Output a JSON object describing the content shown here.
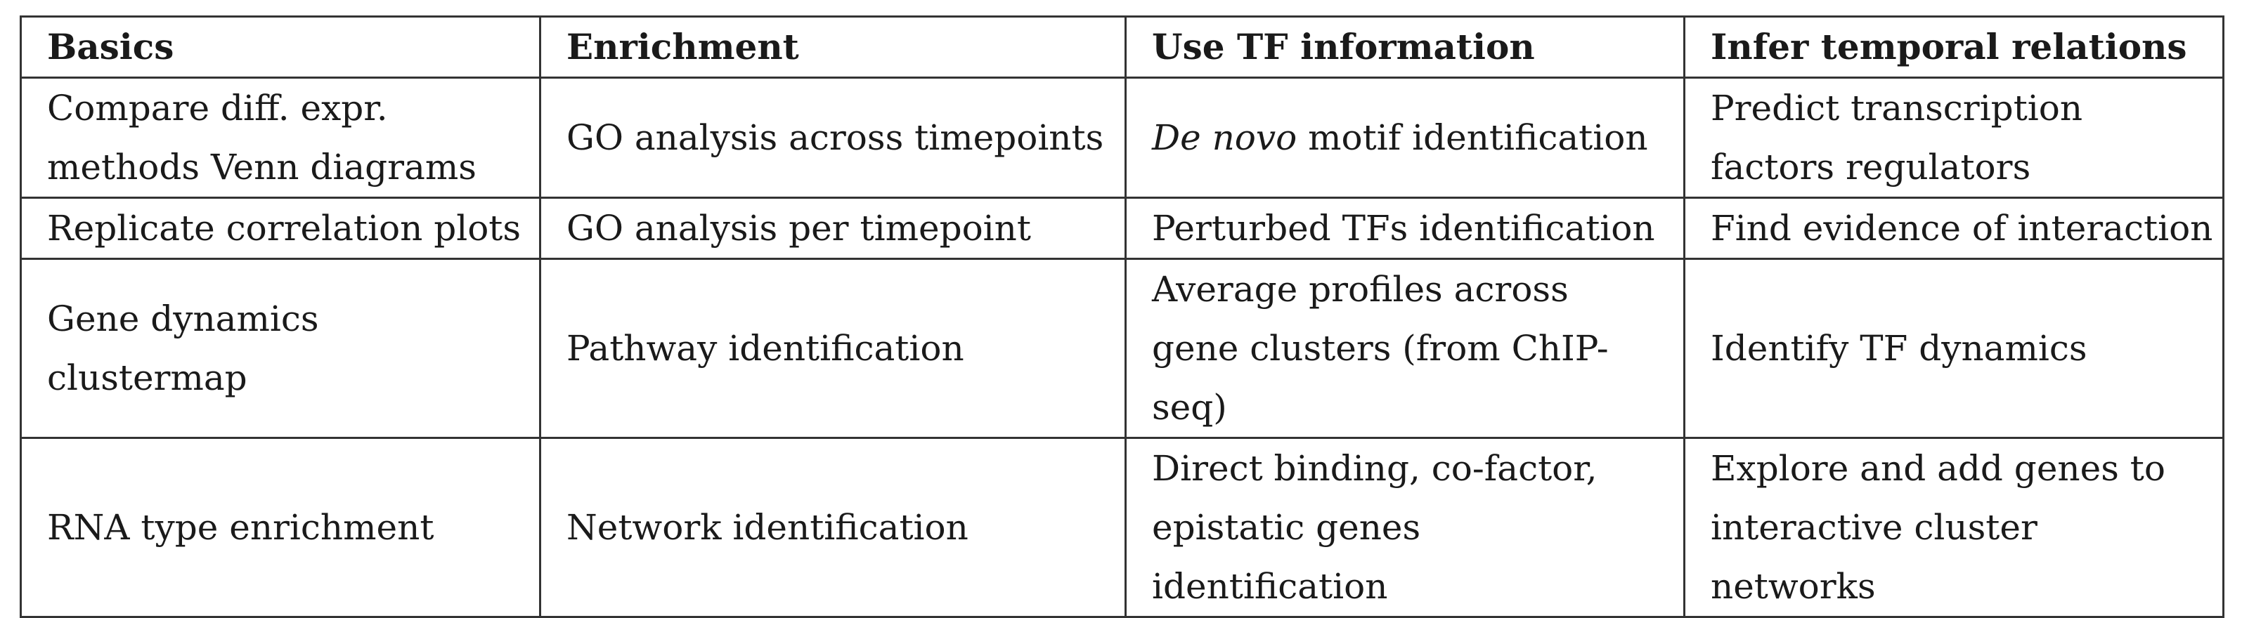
{
  "headers": [
    "Basics",
    "Enrichment",
    "Use TF information",
    "Infer temporal relations"
  ],
  "rows": [
    [
      "Compare diff. expr. methods Venn diagrams",
      "GO analysis across timepoints",
      "motif identification",
      "Predict transcription factors regulators"
    ],
    [
      "Replicate correlation plots",
      "GO analysis per timepoint",
      "Perturbed TFs identification",
      "Find evidence of interaction"
    ],
    [
      "Gene dynamics clustermap",
      "Pathway identification",
      "Average profiles across gene clusters (from ChIP-seq)",
      "Identify TF dynamics"
    ],
    [
      "RNA type enrichment",
      "Network identification",
      "Direct binding, co-factor, epistatic genes identification",
      "Explore and add genes to interactive cluster networks"
    ]
  ],
  "motif_prefix_italic": "De novo"
}
